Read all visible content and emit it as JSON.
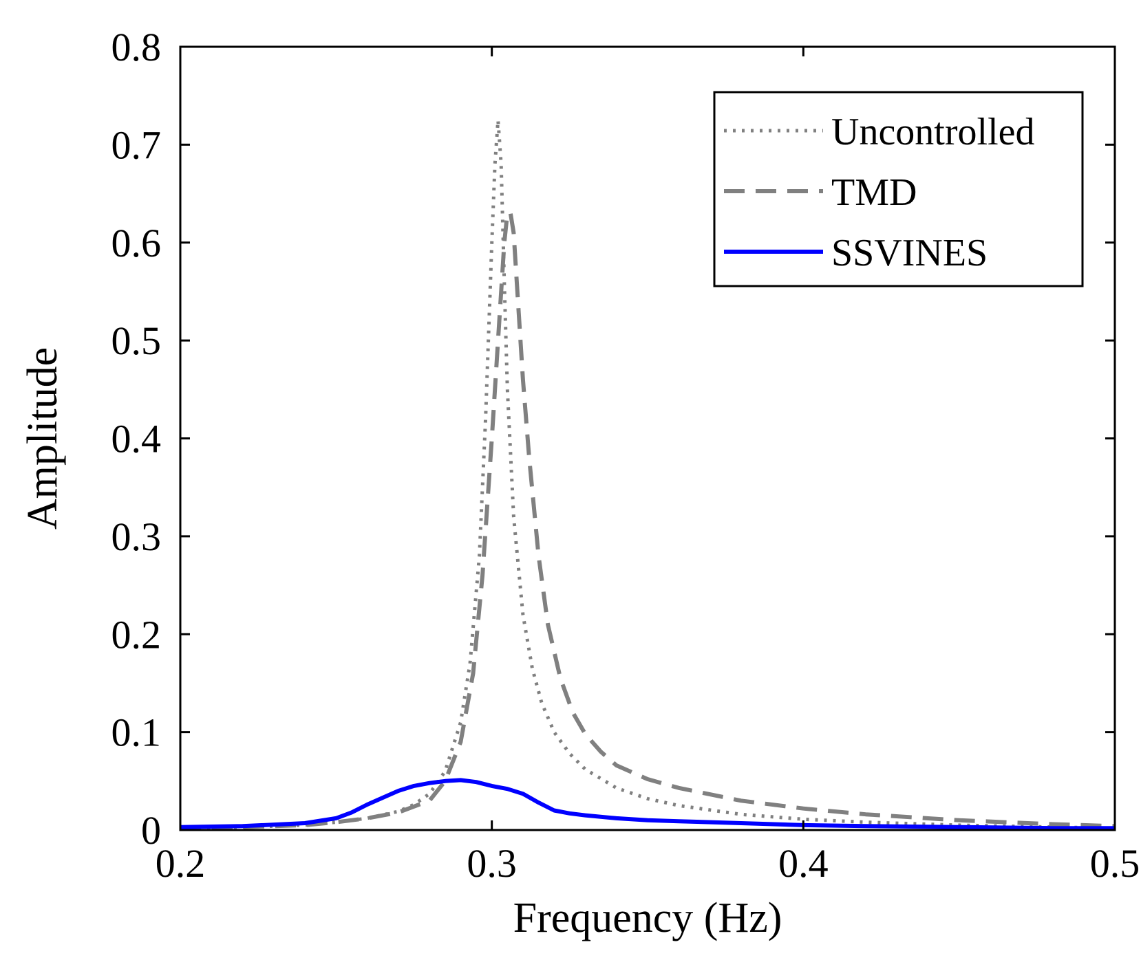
{
  "chart_data": {
    "type": "line",
    "title": "",
    "xlabel": "Frequency (Hz)",
    "ylabel": "Amplitude",
    "xlim": [
      0.2,
      0.5
    ],
    "ylim": [
      0,
      0.8
    ],
    "xticks": [
      0.2,
      0.3,
      0.4,
      0.5
    ],
    "xtick_labels": [
      "0.2",
      "0.3",
      "0.4",
      "0.5"
    ],
    "yticks": [
      0,
      0.1,
      0.2,
      0.3,
      0.4,
      0.5,
      0.6,
      0.7,
      0.8
    ],
    "ytick_labels": [
      "0",
      "0.1",
      "0.2",
      "0.3",
      "0.4",
      "0.5",
      "0.6",
      "0.7",
      "0.8"
    ],
    "grid": false,
    "legend": {
      "position": "top-right"
    },
    "series": [
      {
        "name": "Uncontrolled",
        "style": "dotted",
        "color": "#808080",
        "x": [
          0.2,
          0.22,
          0.24,
          0.25,
          0.26,
          0.27,
          0.275,
          0.28,
          0.285,
          0.29,
          0.293,
          0.296,
          0.298,
          0.3,
          0.301,
          0.302,
          0.303,
          0.304,
          0.305,
          0.307,
          0.31,
          0.313,
          0.316,
          0.32,
          0.325,
          0.33,
          0.34,
          0.35,
          0.36,
          0.38,
          0.4,
          0.42,
          0.45,
          0.48,
          0.5
        ],
        "y": [
          0.002,
          0.003,
          0.005,
          0.008,
          0.012,
          0.019,
          0.026,
          0.037,
          0.06,
          0.11,
          0.17,
          0.28,
          0.42,
          0.6,
          0.68,
          0.725,
          0.68,
          0.56,
          0.45,
          0.32,
          0.22,
          0.165,
          0.13,
          0.1,
          0.078,
          0.062,
          0.043,
          0.032,
          0.025,
          0.016,
          0.011,
          0.008,
          0.005,
          0.003,
          0.002
        ]
      },
      {
        "name": "TMD",
        "style": "dashed",
        "color": "#808080",
        "x": [
          0.2,
          0.22,
          0.24,
          0.25,
          0.26,
          0.27,
          0.28,
          0.285,
          0.29,
          0.294,
          0.297,
          0.3,
          0.302,
          0.304,
          0.305,
          0.306,
          0.307,
          0.308,
          0.31,
          0.312,
          0.315,
          0.318,
          0.322,
          0.326,
          0.33,
          0.335,
          0.34,
          0.35,
          0.36,
          0.38,
          0.4,
          0.42,
          0.45,
          0.48,
          0.5
        ],
        "y": [
          0.002,
          0.003,
          0.005,
          0.008,
          0.012,
          0.018,
          0.03,
          0.05,
          0.09,
          0.16,
          0.26,
          0.4,
          0.5,
          0.6,
          0.63,
          0.63,
          0.61,
          0.56,
          0.46,
          0.38,
          0.28,
          0.21,
          0.155,
          0.12,
          0.098,
          0.08,
          0.066,
          0.052,
          0.043,
          0.03,
          0.022,
          0.016,
          0.01,
          0.006,
          0.004
        ]
      },
      {
        "name": "SSVINES",
        "style": "solid",
        "color": "#0000ff",
        "x": [
          0.2,
          0.22,
          0.24,
          0.25,
          0.255,
          0.26,
          0.265,
          0.27,
          0.275,
          0.28,
          0.285,
          0.29,
          0.295,
          0.3,
          0.305,
          0.31,
          0.315,
          0.32,
          0.325,
          0.33,
          0.34,
          0.35,
          0.36,
          0.38,
          0.4,
          0.42,
          0.45,
          0.48,
          0.5
        ],
        "y": [
          0.003,
          0.004,
          0.007,
          0.012,
          0.018,
          0.026,
          0.033,
          0.04,
          0.045,
          0.048,
          0.05,
          0.051,
          0.049,
          0.045,
          0.042,
          0.037,
          0.028,
          0.02,
          0.017,
          0.015,
          0.012,
          0.01,
          0.009,
          0.007,
          0.005,
          0.004,
          0.003,
          0.002,
          0.002
        ]
      }
    ]
  }
}
